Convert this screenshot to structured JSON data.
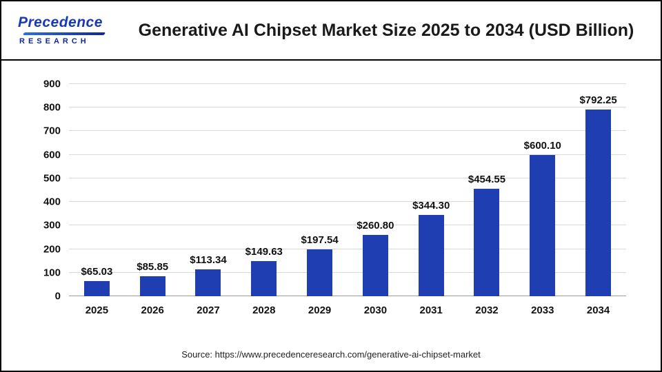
{
  "header": {
    "logo_line1": "Precedence",
    "logo_line2": "RESEARCH",
    "title": "Generative AI Chipset Market Size 2025 to 2034 (USD Billion)"
  },
  "footer": {
    "source": "Source: https://www.precedenceresearch.com/generative-ai-chipset-market"
  },
  "colors": {
    "bar": "#1f3eb1",
    "logo_blue": "#1a3ab5",
    "gridline": "#d9d9d9"
  },
  "chart_data": {
    "type": "bar",
    "title": "Generative AI Chipset Market Size 2025 to 2034 (USD Billion)",
    "unit": "USD Billion",
    "categories": [
      "2025",
      "2026",
      "2027",
      "2028",
      "2029",
      "2030",
      "2031",
      "2032",
      "2033",
      "2034"
    ],
    "values": [
      65.03,
      85.85,
      113.34,
      149.63,
      197.54,
      260.8,
      344.3,
      454.55,
      600.1,
      792.25
    ],
    "value_labels": [
      "$65.03",
      "$85.85",
      "$113.34",
      "$149.63",
      "$197.54",
      "$260.80",
      "$344.30",
      "$454.55",
      "$600.10",
      "$792.25"
    ],
    "xlabel": "",
    "ylabel": "",
    "ylim": [
      0,
      900
    ],
    "yticks": [
      0,
      100,
      200,
      300,
      400,
      500,
      600,
      700,
      800,
      900
    ],
    "grid": "horizontal",
    "legend": "none"
  }
}
